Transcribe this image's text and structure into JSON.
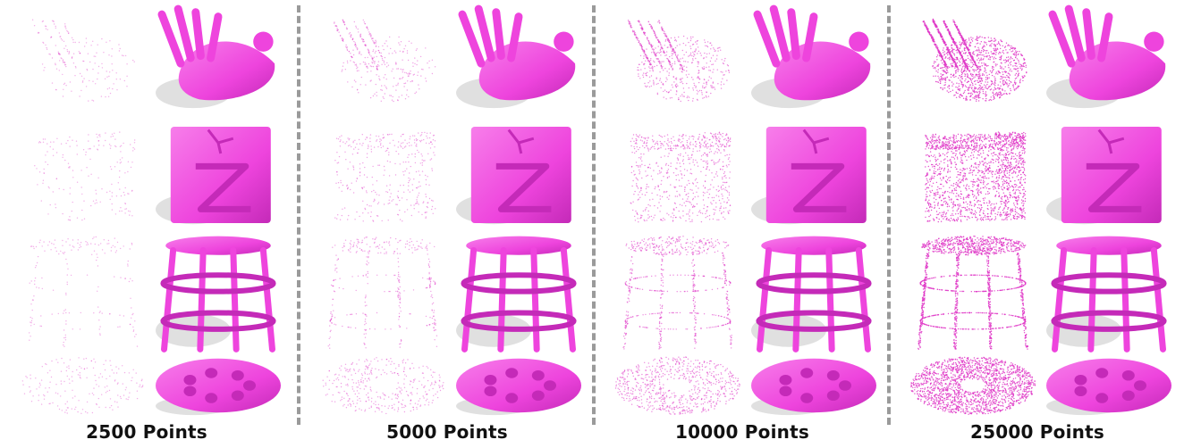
{
  "colors": {
    "surface": "#ee44dd",
    "surface_dark": "#c42ab8",
    "surface_light": "#f77eea",
    "points": "#e03cc8",
    "divider": "#9a9a9a"
  },
  "objects": [
    "frog-shape",
    "cube-shape",
    "stool-shape",
    "snowflake-shape"
  ],
  "columns": [
    {
      "label": "2500 Points",
      "point_count": 2500
    },
    {
      "label": "5000 Points",
      "point_count": 5000
    },
    {
      "label": "10000 Points",
      "point_count": 10000
    },
    {
      "label": "25000 Points",
      "point_count": 25000
    }
  ]
}
